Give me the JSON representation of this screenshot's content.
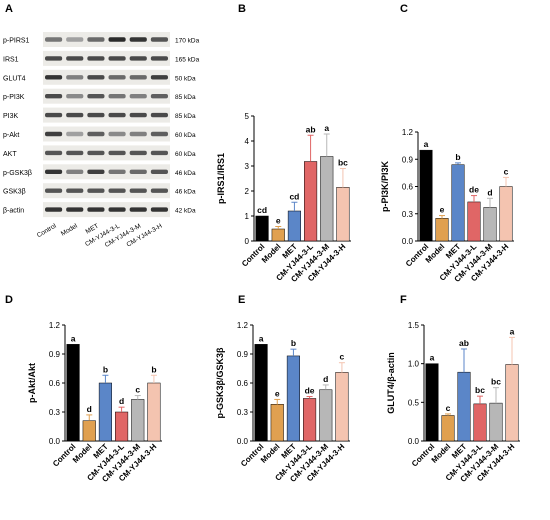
{
  "figure": {
    "categories": [
      "Control",
      "Model",
      "MET",
      "CM-YJ44-3-L",
      "CM-YJ44-3-M",
      "CM-YJ44-3-H"
    ],
    "bar_colors": [
      "#000000",
      "#e0a050",
      "#5b86c8",
      "#e06666",
      "#b7b7b7",
      "#f4c4b0"
    ],
    "blot": {
      "panel_label": "A",
      "proteins": [
        "p-PIRS1",
        "IRS1",
        "GLUT4",
        "p-PI3K",
        "PI3K",
        "p-Akt",
        "AKT",
        "p-GSK3β",
        "GSK3β",
        "β-actin"
      ],
      "sizes": [
        "170 kDa",
        "165 kDa",
        "50 kDa",
        "85 kDa",
        "85 kDa",
        "60 kDa",
        "60 kDa",
        "46 kDa",
        "46 kDa",
        "42 kDa"
      ],
      "band_intensity": [
        [
          0.55,
          0.35,
          0.6,
          0.9,
          0.85,
          0.7
        ],
        [
          0.75,
          0.75,
          0.75,
          0.75,
          0.75,
          0.75
        ],
        [
          0.85,
          0.5,
          0.75,
          0.6,
          0.6,
          0.8
        ],
        [
          0.75,
          0.45,
          0.7,
          0.55,
          0.5,
          0.65
        ],
        [
          0.75,
          0.75,
          0.75,
          0.75,
          0.75,
          0.75
        ],
        [
          0.8,
          0.35,
          0.65,
          0.45,
          0.5,
          0.65
        ],
        [
          0.7,
          0.7,
          0.7,
          0.7,
          0.7,
          0.7
        ],
        [
          0.85,
          0.5,
          0.8,
          0.55,
          0.6,
          0.7
        ],
        [
          0.7,
          0.7,
          0.7,
          0.7,
          0.7,
          0.7
        ],
        [
          0.85,
          0.85,
          0.85,
          0.85,
          0.85,
          0.85
        ]
      ]
    }
  },
  "chart_data": [
    {
      "panel": "B",
      "type": "bar",
      "ylabel": "p-IRS1/IRS1",
      "ylim": [
        0,
        5
      ],
      "yticks": [
        "0",
        "1",
        "2",
        "3",
        "4",
        "5"
      ],
      "values": [
        1.0,
        0.48,
        1.2,
        3.18,
        3.38,
        2.15
      ],
      "errors": [
        0.0,
        0.1,
        0.35,
        1.05,
        0.9,
        0.75
      ],
      "letters": [
        "cd",
        "e",
        "cd",
        "ab",
        "a",
        "bc"
      ]
    },
    {
      "panel": "C",
      "type": "bar",
      "ylabel": "p-PI3K/PI3K",
      "ylim": [
        0,
        1.2
      ],
      "yticks": [
        "0.0",
        "0.3",
        "0.6",
        "0.9",
        "1.2"
      ],
      "values": [
        1.0,
        0.25,
        0.84,
        0.43,
        0.37,
        0.6
      ],
      "errors": [
        0.0,
        0.03,
        0.02,
        0.07,
        0.1,
        0.1
      ],
      "letters": [
        "a",
        "e",
        "b",
        "de",
        "d",
        "c"
      ]
    },
    {
      "panel": "D",
      "type": "bar",
      "ylabel": "p-Akt/Akt",
      "ylim": [
        0,
        1.2
      ],
      "yticks": [
        "0.0",
        "0.3",
        "0.6",
        "0.9",
        "1.2"
      ],
      "values": [
        1.0,
        0.21,
        0.6,
        0.3,
        0.43,
        0.6
      ],
      "errors": [
        0.0,
        0.06,
        0.08,
        0.05,
        0.04,
        0.08
      ],
      "letters": [
        "a",
        "d",
        "b",
        "d",
        "c",
        "b"
      ]
    },
    {
      "panel": "E",
      "type": "bar",
      "ylabel": "p-GSK3β/GSK3β",
      "ylim": [
        0,
        1.2
      ],
      "yticks": [
        "0.0",
        "0.3",
        "0.6",
        "0.9",
        "1.2"
      ],
      "values": [
        1.0,
        0.38,
        0.88,
        0.44,
        0.53,
        0.71
      ],
      "errors": [
        0.0,
        0.05,
        0.07,
        0.02,
        0.05,
        0.1
      ],
      "letters": [
        "a",
        "e",
        "b",
        "de",
        "d",
        "c"
      ]
    },
    {
      "panel": "F",
      "type": "bar",
      "ylabel": "GLUT4/β-actin",
      "ylim": [
        0,
        1.5
      ],
      "yticks": [
        "0.0",
        "0.5",
        "1.0",
        "1.5"
      ],
      "values": [
        1.0,
        0.33,
        0.89,
        0.48,
        0.49,
        0.99
      ],
      "errors": [
        0.0,
        0.02,
        0.3,
        0.1,
        0.2,
        0.35
      ],
      "letters": [
        "a",
        "c",
        "ab",
        "bc",
        "bc",
        "a"
      ]
    }
  ]
}
